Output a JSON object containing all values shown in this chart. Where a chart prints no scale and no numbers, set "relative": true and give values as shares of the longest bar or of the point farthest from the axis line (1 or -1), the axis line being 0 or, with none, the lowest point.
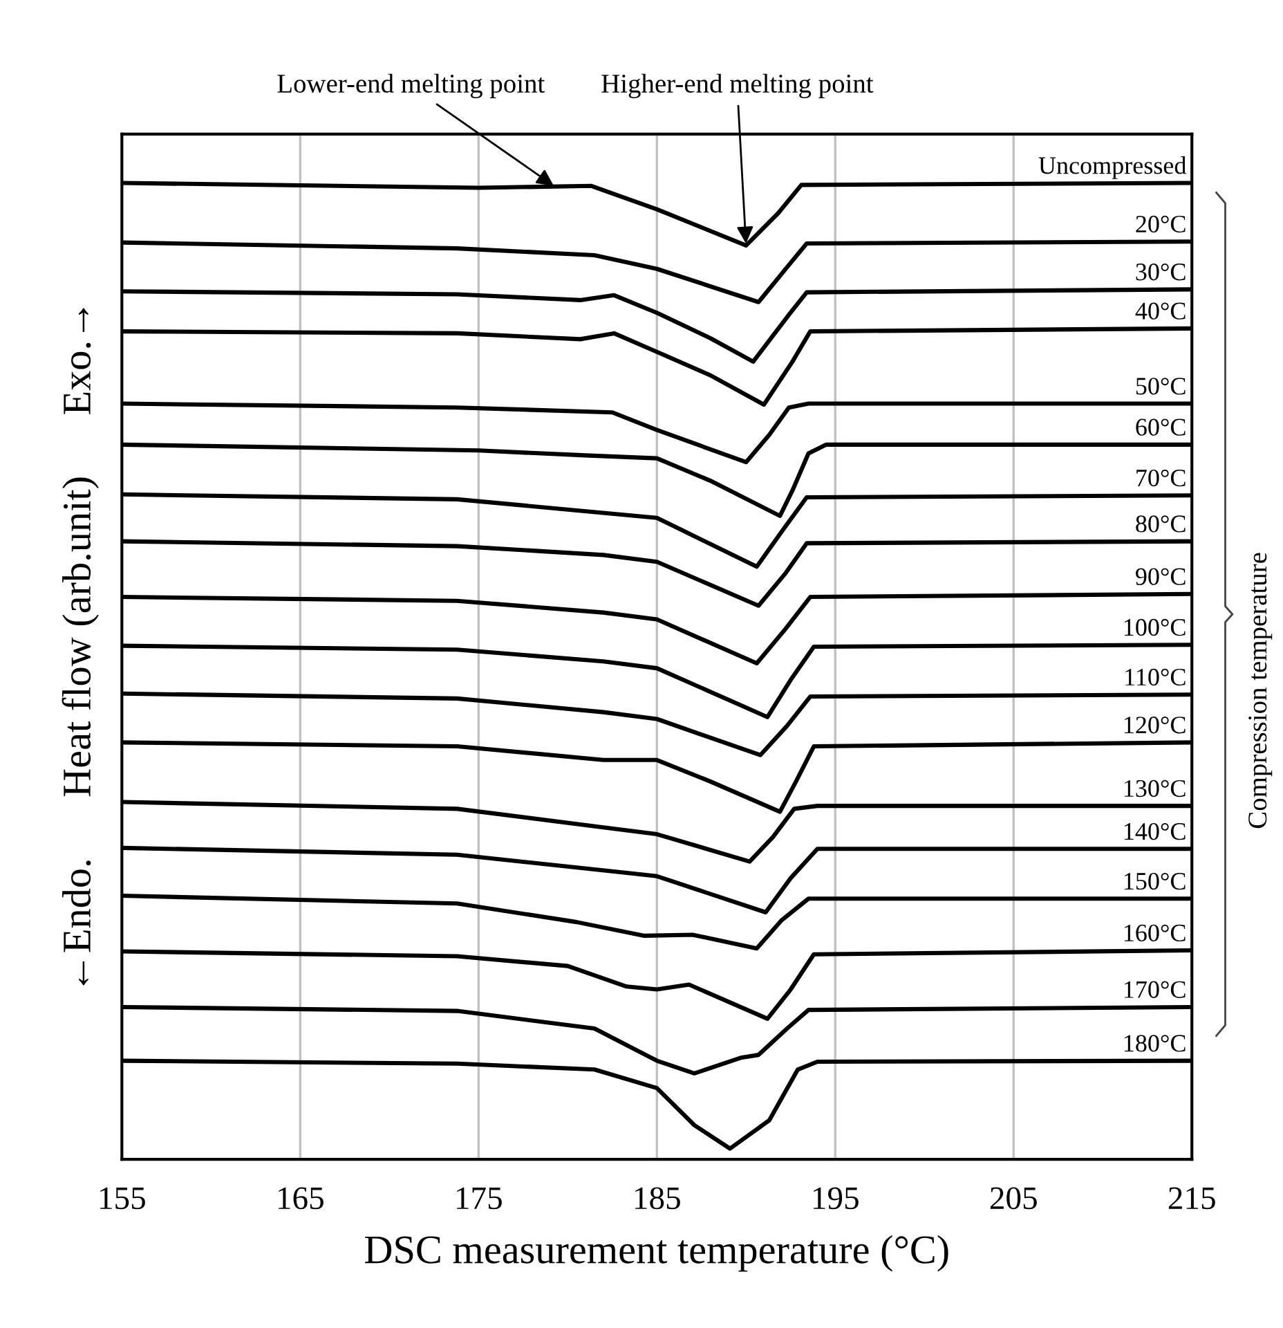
{
  "chart_data": {
    "type": "line",
    "relative": true,
    "xlabel": "DSC measurement temperature (°C)",
    "ylabel": "←Endo.      Heat flow (arb.unit)      Exo.→",
    "xlim": [
      155,
      215
    ],
    "xticks": [
      155,
      165,
      175,
      185,
      195,
      205,
      215
    ],
    "grid": "x",
    "legend": false,
    "marker": "none",
    "line_style": "solid",
    "annotations": [
      {
        "text": "Lower-end melting point",
        "x": 179.3,
        "y": 0.996
      },
      {
        "text": "Higher-end melting point",
        "x": 190.0,
        "y": 0.936
      },
      "Compression temperature"
    ],
    "series": [
      {
        "name": "Uncompressed",
        "color": "#000000",
        "x": [
          155,
          175,
          181.3,
          185,
          190,
          191.8,
          193.1,
          215
        ],
        "values": [
          1.0,
          0.995,
          0.997,
          0.973,
          0.936,
          0.969,
          0.998,
          1.0
        ]
      },
      {
        "name": "20°C",
        "color": "#000000",
        "x": [
          155,
          173.8,
          181.5,
          185,
          190.7,
          192.4,
          193.4,
          215
        ],
        "values": [
          0.939,
          0.933,
          0.926,
          0.912,
          0.878,
          0.916,
          0.938,
          0.94
        ]
      },
      {
        "name": "30°C",
        "color": "#000000",
        "x": [
          155,
          173.8,
          180.7,
          182.6,
          185,
          188,
          190.4,
          192.4,
          193.4,
          215
        ],
        "values": [
          0.889,
          0.886,
          0.88,
          0.885,
          0.867,
          0.841,
          0.817,
          0.865,
          0.888,
          0.891
        ]
      },
      {
        "name": "40°C",
        "color": "#000000",
        "x": [
          155,
          173.8,
          180.7,
          182.6,
          185,
          188,
          191,
          192.6,
          193.6,
          215
        ],
        "values": [
          0.848,
          0.846,
          0.84,
          0.846,
          0.827,
          0.803,
          0.773,
          0.817,
          0.848,
          0.851
        ]
      },
      {
        "name": "50°C",
        "color": "#000000",
        "x": [
          155,
          173.8,
          182.5,
          185,
          190,
          191.3,
          192.4,
          193.5,
          215
        ],
        "values": [
          0.774,
          0.77,
          0.765,
          0.747,
          0.714,
          0.742,
          0.77,
          0.774,
          0.774
        ]
      },
      {
        "name": "60°C",
        "color": "#000000",
        "x": [
          155,
          175,
          181,
          185,
          188,
          191.9,
          192.6,
          193.5,
          194.5,
          215
        ],
        "values": [
          0.732,
          0.726,
          0.721,
          0.718,
          0.695,
          0.659,
          0.685,
          0.723,
          0.732,
          0.732
        ]
      },
      {
        "name": "70°C",
        "color": "#000000",
        "x": [
          155,
          173.8,
          185,
          190.6,
          192,
          193.4,
          215
        ],
        "values": [
          0.681,
          0.676,
          0.657,
          0.607,
          0.643,
          0.678,
          0.68
        ]
      },
      {
        "name": "80°C",
        "color": "#000000",
        "x": [
          155,
          173.8,
          182,
          185,
          190.7,
          192.2,
          193.4,
          215
        ],
        "values": [
          0.633,
          0.628,
          0.619,
          0.612,
          0.567,
          0.6,
          0.631,
          0.633
        ]
      },
      {
        "name": "90°C",
        "color": "#000000",
        "x": [
          155,
          173.8,
          182,
          185,
          190.6,
          192.2,
          193.6,
          215
        ],
        "values": [
          0.576,
          0.572,
          0.56,
          0.553,
          0.508,
          0.543,
          0.576,
          0.579
        ]
      },
      {
        "name": "100°C",
        "color": "#000000",
        "x": [
          155,
          173.8,
          182,
          185,
          191.2,
          192.5,
          193.8,
          215
        ],
        "values": [
          0.526,
          0.522,
          0.51,
          0.503,
          0.453,
          0.491,
          0.525,
          0.527
        ]
      },
      {
        "name": "110°C",
        "color": "#000000",
        "x": [
          155,
          173.8,
          182,
          185,
          190.8,
          192.3,
          193.6,
          215
        ],
        "values": [
          0.477,
          0.472,
          0.458,
          0.451,
          0.414,
          0.444,
          0.474,
          0.476
        ]
      },
      {
        "name": "120°C",
        "color": "#000000",
        "x": [
          155,
          173.8,
          182,
          185,
          188,
          191.9,
          192.8,
          193.8,
          215
        ],
        "values": [
          0.427,
          0.423,
          0.409,
          0.409,
          0.387,
          0.356,
          0.387,
          0.423,
          0.427
        ]
      },
      {
        "name": "130°C",
        "color": "#000000",
        "x": [
          155,
          173.8,
          182,
          185,
          190.2,
          191.5,
          192.7,
          194,
          215
        ],
        "values": [
          0.366,
          0.359,
          0.34,
          0.333,
          0.305,
          0.33,
          0.359,
          0.362,
          0.362
        ]
      },
      {
        "name": "140°C",
        "color": "#000000",
        "x": [
          155,
          173.8,
          183.5,
          185,
          191.1,
          192.5,
          194,
          215
        ],
        "values": [
          0.319,
          0.312,
          0.293,
          0.29,
          0.253,
          0.288,
          0.318,
          0.318
        ]
      },
      {
        "name": "150°C",
        "color": "#000000",
        "x": [
          155,
          173.8,
          180.5,
          184.3,
          187,
          190.6,
          192,
          193.5,
          215
        ],
        "values": [
          0.27,
          0.262,
          0.243,
          0.229,
          0.23,
          0.216,
          0.245,
          0.267,
          0.267
        ]
      },
      {
        "name": "160°C",
        "color": "#000000",
        "x": [
          155,
          173.8,
          180,
          183.3,
          185,
          186.8,
          191.2,
          192.5,
          193.8,
          215
        ],
        "values": [
          0.213,
          0.208,
          0.198,
          0.177,
          0.174,
          0.179,
          0.144,
          0.174,
          0.21,
          0.214
        ]
      },
      {
        "name": "170°C",
        "color": "#000000",
        "x": [
          155,
          173.8,
          181.5,
          185,
          187.1,
          189.7,
          190.7,
          192.3,
          193.5,
          215
        ],
        "values": [
          0.156,
          0.152,
          0.134,
          0.101,
          0.088,
          0.104,
          0.107,
          0.134,
          0.153,
          0.156
        ]
      },
      {
        "name": "180°C",
        "color": "#000000",
        "x": [
          155,
          173.8,
          181.5,
          185,
          187.1,
          189.1,
          191.3,
          192.9,
          194,
          215
        ],
        "values": [
          0.101,
          0.098,
          0.092,
          0.073,
          0.035,
          0.011,
          0.04,
          0.092,
          0.1,
          0.101
        ]
      }
    ]
  }
}
